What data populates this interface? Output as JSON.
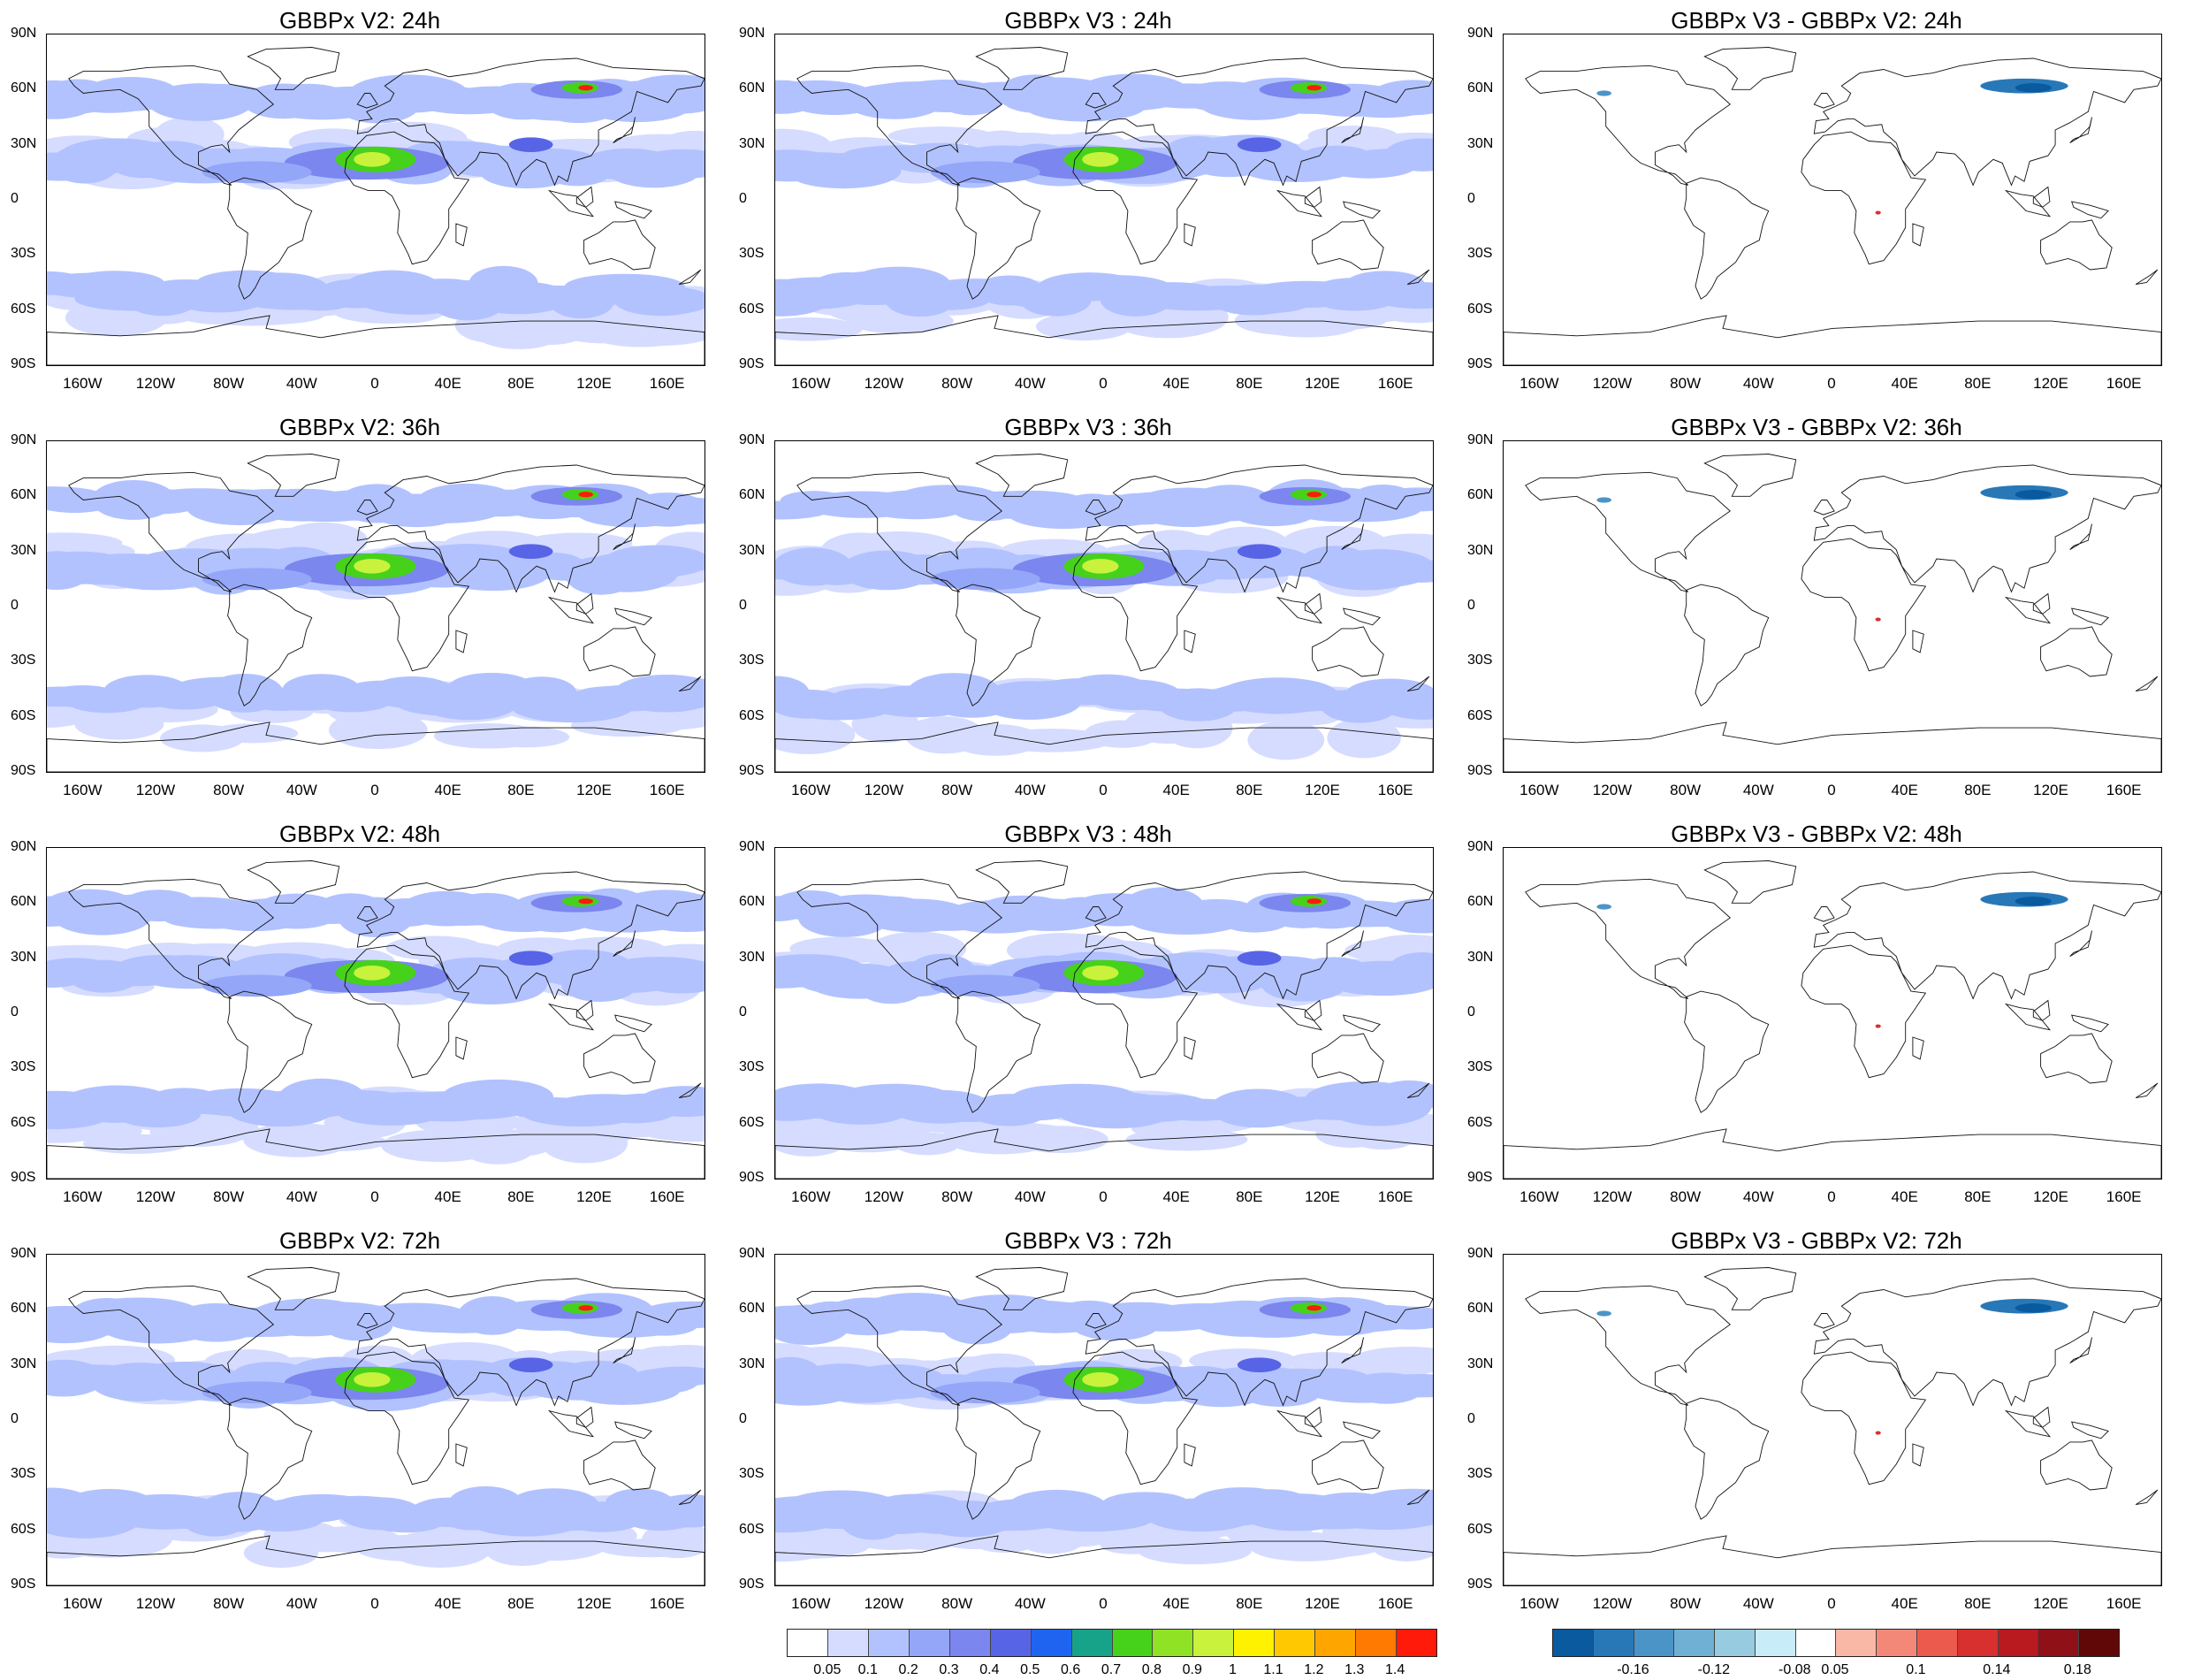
{
  "panels": [
    {
      "title": "GBBPx V2: 24h",
      "kind": "v"
    },
    {
      "title": "GBBPx V3 : 24h",
      "kind": "v"
    },
    {
      "title": "GBBPx V3 - GBBPx V2: 24h",
      "kind": "d"
    },
    {
      "title": "GBBPx V2: 36h",
      "kind": "v"
    },
    {
      "title": "GBBPx V3 : 36h",
      "kind": "v"
    },
    {
      "title": "GBBPx V3 - GBBPx V2: 36h",
      "kind": "d"
    },
    {
      "title": "GBBPx V2: 48h",
      "kind": "v"
    },
    {
      "title": "GBBPx V3 : 48h",
      "kind": "v"
    },
    {
      "title": "GBBPx V3 - GBBPx V2: 48h",
      "kind": "d"
    },
    {
      "title": "GBBPx V2: 72h",
      "kind": "v"
    },
    {
      "title": "GBBPx V3 : 72h",
      "kind": "v"
    },
    {
      "title": "GBBPx V3 - GBBPx V2: 72h",
      "kind": "d"
    }
  ],
  "lat_labels": [
    "90N",
    "60N",
    "30N",
    "0",
    "30S",
    "60S",
    "90S"
  ],
  "lon_labels": [
    "160W",
    "120W",
    "80W",
    "40W",
    "0",
    "40E",
    "80E",
    "120E",
    "160E"
  ],
  "colorbar_main": {
    "colors": [
      "#ffffff",
      "#d5dcff",
      "#b2c2ff",
      "#94a6f8",
      "#7b86ee",
      "#5864e6",
      "#1f64f0",
      "#17a38a",
      "#46d21a",
      "#8fe324",
      "#c8f23c",
      "#fff200",
      "#ffc800",
      "#ffa500",
      "#ff7a00",
      "#ff1a0a"
    ],
    "labels": [
      "0.05",
      "0.1",
      "0.2",
      "0.3",
      "0.4",
      "0.5",
      "0.6",
      "0.7",
      "0.8",
      "0.9",
      "1",
      "1.1",
      "1.2",
      "1.3",
      "1.4"
    ]
  },
  "colorbar_diff": {
    "colors": [
      "#0a5aa0",
      "#2878b8",
      "#4b94c8",
      "#6fb0d4",
      "#96cbe0",
      "#c8ecf8",
      "#ffffff",
      "#f9b8a6",
      "#f48878",
      "#ec5a4e",
      "#d8302e",
      "#b81a20",
      "#901018",
      "#600808"
    ],
    "labels": [
      "-0.16",
      "-0.12",
      "-0.08",
      "0.05",
      "0.1",
      "0.14",
      "0.18"
    ]
  }
}
